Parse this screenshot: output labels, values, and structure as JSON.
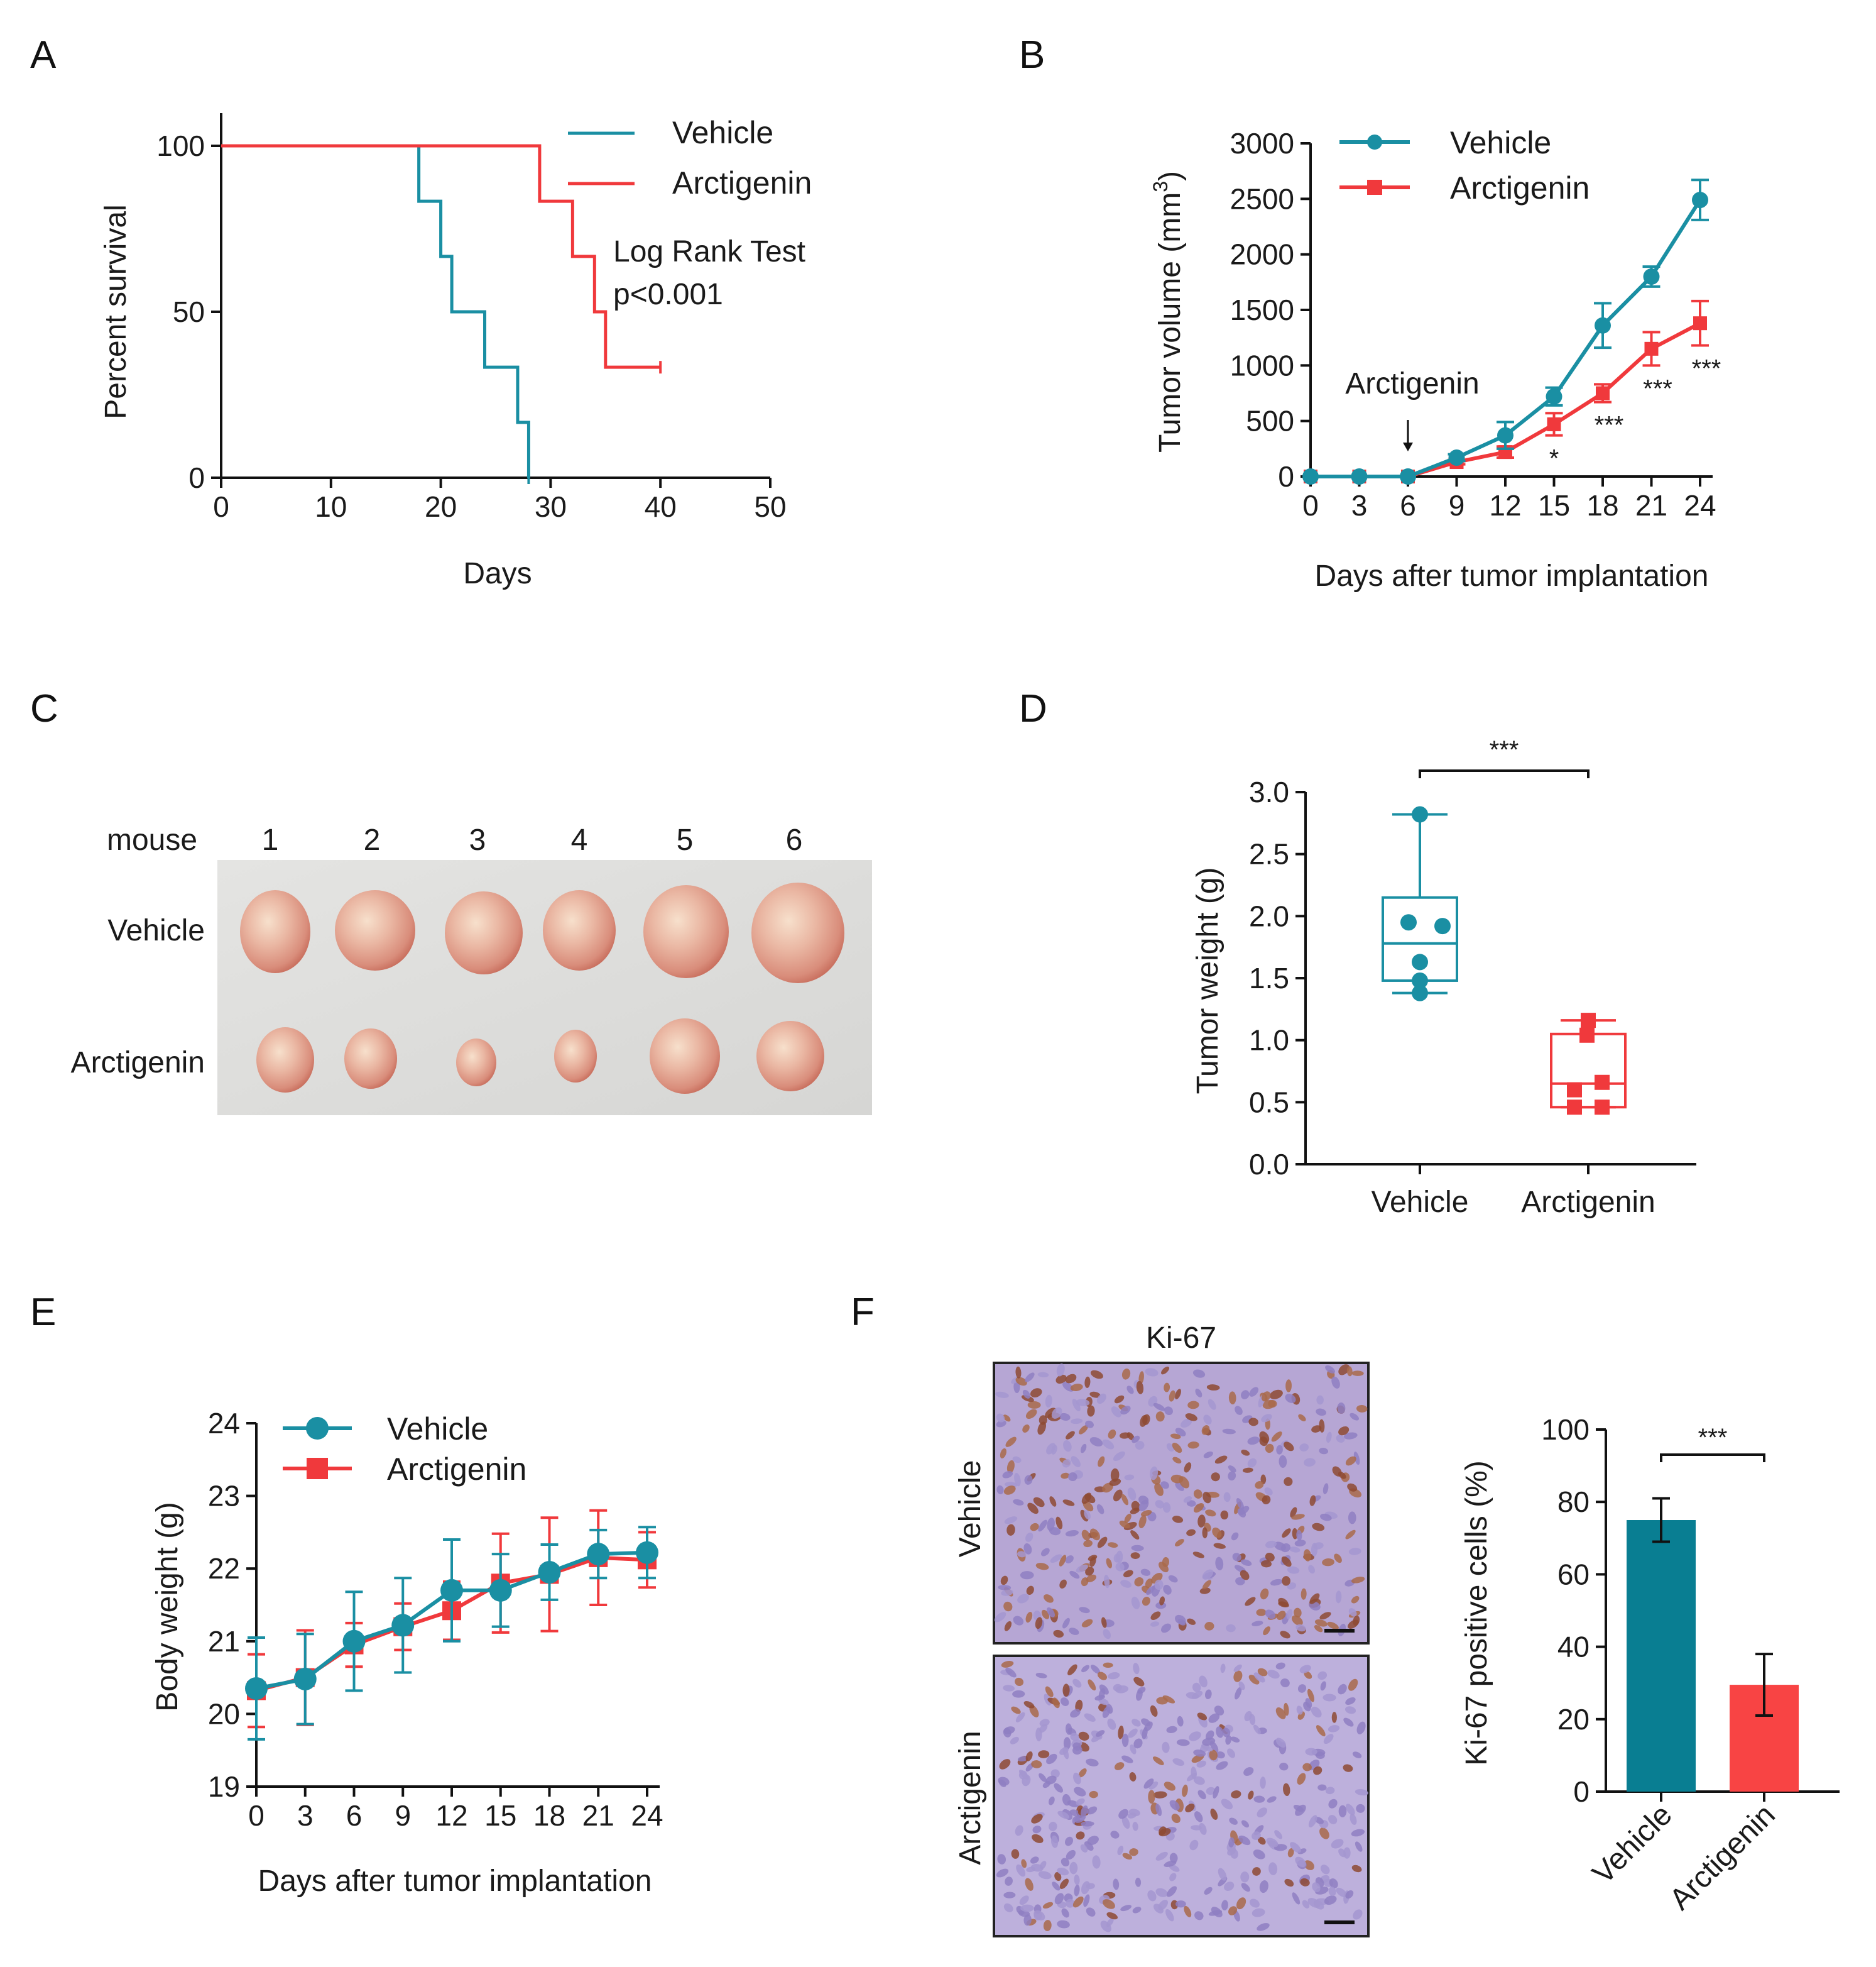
{
  "colors": {
    "vehicle": "#1a8fa3",
    "arctigenin": "#f0393c",
    "bar_vehicle": "#097e92",
    "bar_arctigenin": "#f84444"
  },
  "panel_labels": [
    "A",
    "B",
    "C",
    "D",
    "E",
    "F"
  ],
  "chart_data": [
    {
      "id": "A",
      "type": "line",
      "step": true,
      "xlabel": "Days",
      "ylabel": "Percent survival",
      "xlim": [
        0,
        50
      ],
      "ylim": [
        0,
        100
      ],
      "xticks": [
        "0",
        "10",
        "20",
        "30",
        "40",
        "50"
      ],
      "yticks": [
        "0",
        "50",
        "100"
      ],
      "legend": [
        "Vehicle",
        "Arctigenin"
      ],
      "annotation": [
        "Log Rank Test",
        "p<0.001"
      ],
      "series": [
        {
          "name": "Vehicle",
          "x": [
            0,
            18,
            20,
            21,
            24,
            27,
            28
          ],
          "y": [
            100,
            83.3,
            66.7,
            50,
            33.3,
            16.7,
            0
          ],
          "end_x": 28
        },
        {
          "name": "Arctigenin",
          "x": [
            0,
            29,
            32,
            34,
            35
          ],
          "y": [
            100,
            83.3,
            66.7,
            50,
            33.3
          ],
          "end_x": 40
        }
      ]
    },
    {
      "id": "B",
      "type": "line",
      "xlabel": "Days after tumor implantation",
      "ylabel": "Tumor volume (mm",
      "ylabel_sup": "3",
      "ylabel_end": ")",
      "xlim": [
        0,
        24
      ],
      "ylim": [
        0,
        3000
      ],
      "xticks": [
        "0",
        "3",
        "6",
        "9",
        "12",
        "15",
        "18",
        "21",
        "24"
      ],
      "yticks": [
        "0",
        "500",
        "1000",
        "1500",
        "2000",
        "2500",
        "3000"
      ],
      "legend": [
        "Vehicle",
        "Arctigenin"
      ],
      "arrow_label": "Arctigenin",
      "arrow_x": 6,
      "significance": [
        {
          "x": 15,
          "label": "*"
        },
        {
          "x": 18,
          "label": "***"
        },
        {
          "x": 21,
          "label": "***"
        },
        {
          "x": 24,
          "label": "***"
        }
      ],
      "series": [
        {
          "name": "Vehicle",
          "x": [
            0,
            3,
            6,
            9,
            12,
            15,
            18,
            21,
            24
          ],
          "y": [
            0,
            0,
            0,
            170,
            370,
            720,
            1360,
            1800,
            2490
          ],
          "err": [
            0,
            0,
            0,
            30,
            120,
            80,
            200,
            90,
            180
          ]
        },
        {
          "name": "Arctigenin",
          "x": [
            0,
            3,
            6,
            9,
            12,
            15,
            18,
            21,
            24
          ],
          "y": [
            0,
            0,
            0,
            130,
            220,
            470,
            750,
            1150,
            1380
          ],
          "err": [
            0,
            0,
            0,
            20,
            50,
            100,
            80,
            150,
            200
          ]
        }
      ]
    },
    {
      "id": "D",
      "type": "box",
      "ylabel": "Tumor weight (g)",
      "ylim": [
        0,
        3.0
      ],
      "yticks": [
        "0.0",
        "0.5",
        "1.0",
        "1.5",
        "2.0",
        "2.5",
        "3.0"
      ],
      "categories": [
        "Vehicle",
        "Arctigenin"
      ],
      "significance": "***",
      "groups": [
        {
          "name": "Vehicle",
          "min": 1.38,
          "q1": 1.48,
          "median": 1.78,
          "q3": 2.15,
          "max": 2.82,
          "points": [
            2.82,
            1.95,
            1.92,
            1.63,
            1.48,
            1.38
          ]
        },
        {
          "name": "Arctigenin",
          "min": 0.46,
          "q1": 0.46,
          "median": 0.65,
          "q3": 1.05,
          "max": 1.16,
          "points": [
            1.16,
            1.04,
            0.66,
            0.6,
            0.46,
            0.46
          ]
        }
      ]
    },
    {
      "id": "E",
      "type": "line",
      "xlabel": "Days after tumor implantation",
      "ylabel": "Body weight (g)",
      "xlim": [
        0,
        24
      ],
      "ylim": [
        19,
        24
      ],
      "xticks": [
        "0",
        "3",
        "6",
        "9",
        "12",
        "15",
        "18",
        "21",
        "24"
      ],
      "yticks": [
        "19",
        "20",
        "21",
        "22",
        "23",
        "24"
      ],
      "legend": [
        "Vehicle",
        "Arctigenin"
      ],
      "series": [
        {
          "name": "Vehicle",
          "x": [
            0,
            3,
            6,
            9,
            12,
            15,
            18,
            21,
            24
          ],
          "y": [
            20.35,
            20.48,
            21.0,
            21.22,
            21.7,
            21.7,
            21.95,
            22.2,
            22.22
          ],
          "err": [
            0.7,
            0.62,
            0.68,
            0.65,
            0.7,
            0.5,
            0.38,
            0.33,
            0.35
          ]
        },
        {
          "name": "Arctigenin",
          "x": [
            0,
            3,
            6,
            9,
            12,
            15,
            18,
            21,
            24
          ],
          "y": [
            20.32,
            20.5,
            20.95,
            21.2,
            21.42,
            21.8,
            21.92,
            22.15,
            22.12
          ],
          "err": [
            0.5,
            0.65,
            0.3,
            0.32,
            0.4,
            0.68,
            0.78,
            0.65,
            0.38
          ]
        }
      ]
    },
    {
      "id": "F",
      "type": "bar",
      "ylabel": "Ki-67 positive cells (%)",
      "ylim": [
        0,
        100
      ],
      "yticks": [
        "0",
        "20",
        "40",
        "60",
        "80",
        "100"
      ],
      "categories": [
        "Vehicle",
        "Arctigenin"
      ],
      "significance": "***",
      "values": [
        75,
        29.5
      ],
      "err": [
        6,
        8.5
      ]
    }
  ],
  "panel_c": {
    "header": "mouse",
    "mice": [
      "1",
      "2",
      "3",
      "4",
      "5",
      "6"
    ],
    "rows": [
      "Vehicle",
      "Arctigenin"
    ]
  },
  "panel_f_images": {
    "title": "Ki-67",
    "rows": [
      "Vehicle",
      "Arctigenin"
    ]
  }
}
